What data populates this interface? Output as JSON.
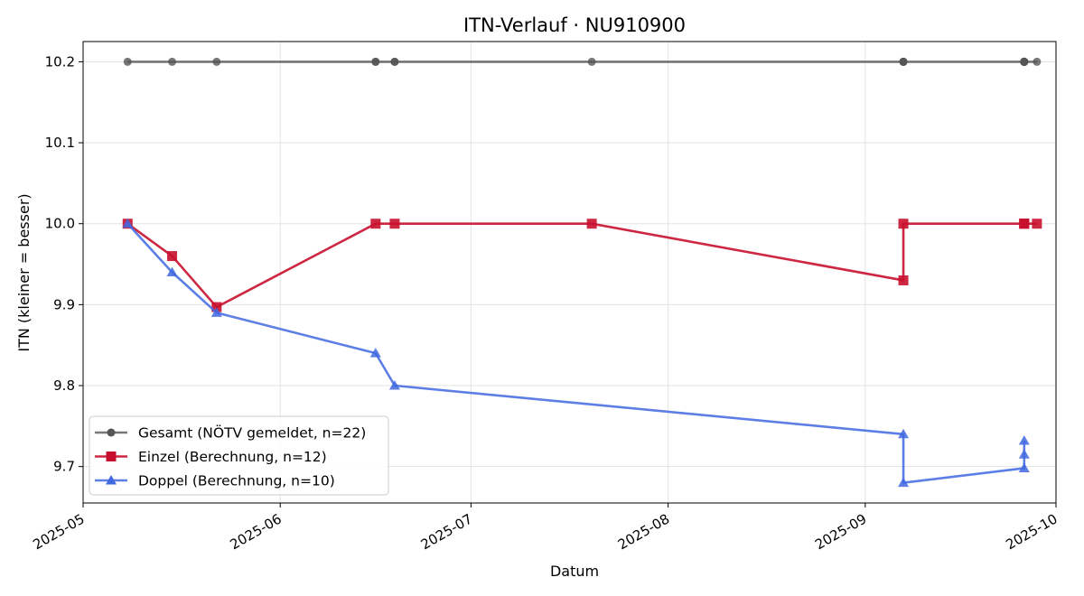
{
  "chart_data": {
    "type": "line",
    "title": "ITN-Verlauf · NU910900",
    "xlabel": "Datum",
    "ylabel": "ITN  (kleiner = besser)",
    "x_type": "date",
    "xlim": [
      "2025-05-01",
      "2025-10-01"
    ],
    "ylim": [
      9.655,
      10.225
    ],
    "x_ticks": [
      "2025-05-01",
      "2025-06-01",
      "2025-07-01",
      "2025-08-01",
      "2025-09-01",
      "2025-10-01"
    ],
    "x_tick_labels": [
      "2025-05",
      "2025-06",
      "2025-07",
      "2025-08",
      "2025-09",
      "2025-10"
    ],
    "y_ticks": [
      9.7,
      9.8,
      9.9,
      10.0,
      10.1,
      10.2
    ],
    "y_tick_labels": [
      "9.7",
      "9.8",
      "9.9",
      "10.0",
      "10.1",
      "10.2"
    ],
    "grid": true,
    "legend_position": "lower-left",
    "series": [
      {
        "name": "Gesamt (NÖTV gemeldet, n=22)",
        "color": "#555555",
        "marker": "circle",
        "points": [
          {
            "x": "2025-05-08",
            "y": 10.2
          },
          {
            "x": "2025-05-15",
            "y": 10.2
          },
          {
            "x": "2025-05-22",
            "y": 10.2
          },
          {
            "x": "2025-06-16",
            "y": 10.2
          },
          {
            "x": "2025-06-16",
            "y": 10.2
          },
          {
            "x": "2025-06-19",
            "y": 10.2
          },
          {
            "x": "2025-06-19",
            "y": 10.2
          },
          {
            "x": "2025-07-20",
            "y": 10.2
          },
          {
            "x": "2025-09-07",
            "y": 10.2
          },
          {
            "x": "2025-09-07",
            "y": 10.2
          },
          {
            "x": "2025-09-07",
            "y": 10.2
          },
          {
            "x": "2025-09-07",
            "y": 10.2
          },
          {
            "x": "2025-09-26",
            "y": 10.2
          },
          {
            "x": "2025-09-26",
            "y": 10.2
          },
          {
            "x": "2025-09-26",
            "y": 10.2
          },
          {
            "x": "2025-09-26",
            "y": 10.2
          },
          {
            "x": "2025-09-26",
            "y": 10.2
          },
          {
            "x": "2025-09-26",
            "y": 10.2
          },
          {
            "x": "2025-09-26",
            "y": 10.2
          },
          {
            "x": "2025-09-26",
            "y": 10.2
          },
          {
            "x": "2025-09-26",
            "y": 10.2
          },
          {
            "x": "2025-09-28",
            "y": 10.2
          }
        ]
      },
      {
        "name": "Einzel (Berechnung, n=12)",
        "color": "#c8102e",
        "marker": "square",
        "points": [
          {
            "x": "2025-05-08",
            "y": 10.0
          },
          {
            "x": "2025-05-15",
            "y": 9.96
          },
          {
            "x": "2025-05-22",
            "y": 9.897
          },
          {
            "x": "2025-06-16",
            "y": 10.0
          },
          {
            "x": "2025-06-19",
            "y": 10.0
          },
          {
            "x": "2025-07-20",
            "y": 10.0
          },
          {
            "x": "2025-09-07",
            "y": 9.93
          },
          {
            "x": "2025-09-07",
            "y": 10.0
          },
          {
            "x": "2025-09-26",
            "y": 10.0
          },
          {
            "x": "2025-09-26",
            "y": 10.0
          },
          {
            "x": "2025-09-26",
            "y": 10.0
          },
          {
            "x": "2025-09-28",
            "y": 10.0
          }
        ]
      },
      {
        "name": "Doppel (Berechnung, n=10)",
        "color": "#4169e1",
        "marker": "triangle",
        "points": [
          {
            "x": "2025-05-08",
            "y": 10.0
          },
          {
            "x": "2025-05-15",
            "y": 9.94
          },
          {
            "x": "2025-05-22",
            "y": 9.89
          },
          {
            "x": "2025-06-16",
            "y": 9.84
          },
          {
            "x": "2025-06-19",
            "y": 9.8
          },
          {
            "x": "2025-09-07",
            "y": 9.74
          },
          {
            "x": "2025-09-07",
            "y": 9.68
          },
          {
            "x": "2025-09-26",
            "y": 9.698
          },
          {
            "x": "2025-09-26",
            "y": 9.715
          },
          {
            "x": "2025-09-26",
            "y": 9.732
          }
        ]
      }
    ]
  }
}
